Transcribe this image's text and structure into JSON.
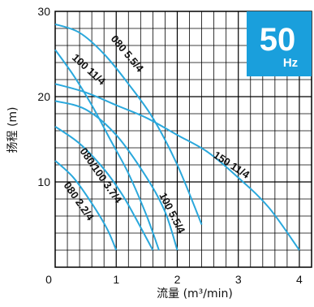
{
  "chart_data": {
    "type": "line",
    "xlabel": "流量 (m³/min)",
    "ylabel": "扬程 (m)",
    "xlim": [
      0,
      4.2
    ],
    "ylim": [
      0,
      30
    ],
    "x_ticks": [
      "0",
      "1",
      "2",
      "3",
      "4"
    ],
    "y_ticks": [
      "10",
      "20",
      "30"
    ],
    "grid": true,
    "badge": {
      "value": "50",
      "unit": "Hz",
      "color": "#1a9fdc"
    },
    "curve_color": "#2aa8dc",
    "series": [
      {
        "name": "080 2.2/4",
        "x": [
          0,
          0.3,
          0.6,
          0.85,
          1.0
        ],
        "y": [
          12.5,
          10.5,
          7.5,
          4.5,
          2.0
        ]
      },
      {
        "name": "080/100 3.7/4",
        "x": [
          0,
          0.4,
          0.8,
          1.1,
          1.3,
          1.6
        ],
        "y": [
          16.5,
          14.5,
          11.5,
          8.5,
          6.0,
          2.0
        ]
      },
      {
        "name": "100 5.5/4",
        "x": [
          0,
          0.5,
          1.0,
          1.5,
          1.8,
          2.0
        ],
        "y": [
          19.5,
          18.5,
          15.5,
          10.5,
          6.5,
          2.0
        ]
      },
      {
        "name": "100 11/4",
        "x": [
          0,
          0.3,
          0.6,
          0.9,
          1.2,
          1.5,
          1.7
        ],
        "y": [
          25.5,
          22.5,
          19.0,
          15.0,
          11.0,
          6.0,
          2.0
        ]
      },
      {
        "name": "080 5.5/4",
        "x": [
          0,
          0.4,
          0.8,
          1.2,
          1.6,
          2.0,
          2.4
        ],
        "y": [
          28.5,
          27.5,
          25.0,
          21.5,
          17.5,
          12.0,
          5.0
        ]
      },
      {
        "name": "150 11/4",
        "x": [
          0,
          0.5,
          1.0,
          1.5,
          2.0,
          2.5,
          3.0,
          3.5,
          4.0
        ],
        "y": [
          21.5,
          20.5,
          19.0,
          17.5,
          15.5,
          13.5,
          10.5,
          7.0,
          2.0
        ]
      }
    ]
  }
}
